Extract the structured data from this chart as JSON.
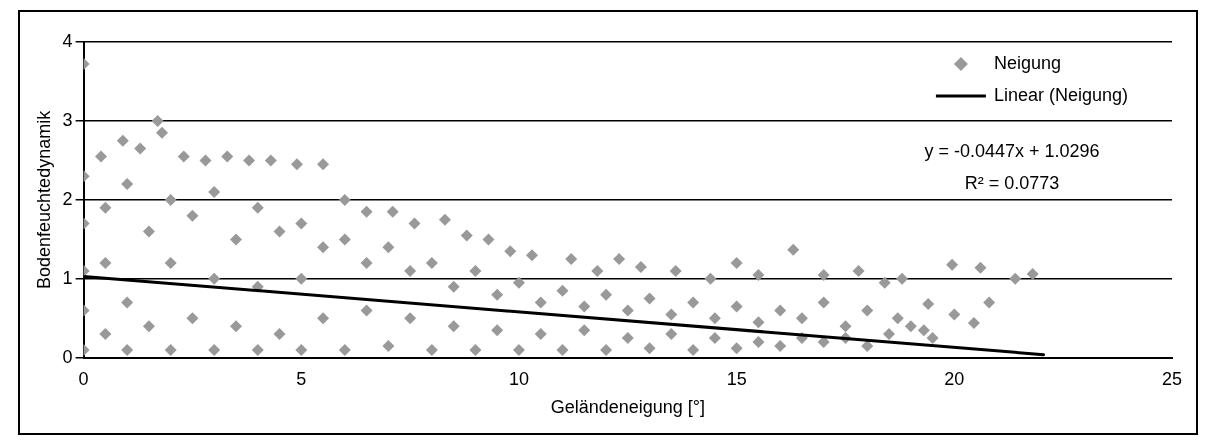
{
  "chart_data": {
    "type": "scatter",
    "xlabel": "Geländeneigung [°]",
    "ylabel": "Bodenfeuchtedynamik",
    "xlim": [
      0,
      25
    ],
    "xticks": [
      0,
      5,
      10,
      15,
      20,
      25
    ],
    "ylim": [
      0,
      4
    ],
    "yticks": [
      0,
      1,
      2,
      3,
      4
    ],
    "grid": "y",
    "legend": "top right",
    "annotations": [
      "y = -0.0447x + 1.0296",
      "R² = 0.0773"
    ],
    "series": [
      {
        "name": "Neigung",
        "type": "scatter",
        "color": "#999999",
        "marker": "diamond",
        "x": [
          0,
          0,
          0.4,
          0.9,
          1.3,
          1.7,
          1.8,
          2.3,
          2.8,
          3.3,
          3.8,
          4.3,
          4.9,
          5.5,
          6,
          6.5,
          7.1,
          7.6,
          8.3,
          8.8,
          9.3,
          9.8,
          10.3,
          11.2,
          11.8,
          12.3,
          12.8,
          13.6,
          14.4,
          15,
          15.5,
          16.3,
          17,
          17.8,
          18.4,
          18.8,
          19.4,
          19.95,
          20.45,
          20.6,
          21.4,
          21.8,
          0,
          0.5,
          1,
          1.5,
          2,
          2.5,
          3,
          3.5,
          4,
          4.5,
          5,
          5.5,
          6,
          6.5,
          7,
          7.5,
          8,
          8.5,
          9,
          9.5,
          10,
          10.5,
          11,
          11.5,
          12,
          12.5,
          13,
          13.5,
          14,
          14.5,
          15,
          15.5,
          16,
          16.5,
          17,
          17.5,
          18,
          18.5,
          19,
          19.5,
          20,
          20.8,
          0,
          0,
          0,
          0.5,
          0.5,
          1,
          1,
          1.5,
          2,
          2,
          2.5,
          3,
          3,
          3.5,
          4,
          4,
          4.5,
          5,
          5,
          5.5,
          6,
          6.5,
          7,
          7.5,
          8,
          8.5,
          9,
          9.5,
          10,
          10.5,
          11,
          11.5,
          12,
          12.5,
          13,
          13.5,
          14,
          14.5,
          15,
          15.5,
          16,
          16.5,
          17,
          17.5,
          18,
          18.7,
          19.3
        ],
        "values": [
          3.72,
          2.3,
          2.55,
          2.75,
          2.65,
          3.0,
          2.85,
          2.55,
          2.5,
          2.55,
          2.5,
          2.5,
          2.45,
          2.45,
          2.0,
          1.85,
          1.85,
          1.7,
          1.75,
          1.55,
          1.5,
          1.35,
          1.3,
          1.25,
          1.1,
          1.25,
          1.15,
          1.1,
          1.0,
          1.2,
          1.05,
          1.37,
          1.05,
          1.1,
          0.95,
          1.0,
          0.68,
          1.18,
          0.44,
          1.14,
          1.0,
          1.06,
          1.7,
          1.9,
          2.2,
          1.6,
          2.0,
          1.8,
          2.1,
          1.5,
          1.9,
          1.6,
          1.7,
          1.4,
          1.5,
          1.2,
          1.4,
          1.1,
          1.2,
          0.9,
          1.1,
          0.8,
          0.95,
          0.7,
          0.85,
          0.65,
          0.8,
          0.6,
          0.75,
          0.55,
          0.7,
          0.5,
          0.65,
          0.45,
          0.6,
          0.5,
          0.7,
          0.4,
          0.6,
          0.3,
          0.4,
          0.25,
          0.55,
          0.7,
          0.1,
          0.6,
          1.1,
          0.3,
          1.2,
          0.1,
          0.7,
          0.4,
          0.1,
          1.2,
          0.5,
          0.1,
          1.0,
          0.4,
          0.1,
          0.9,
          0.3,
          0.1,
          1.0,
          0.5,
          0.1,
          0.6,
          0.15,
          0.5,
          0.1,
          0.4,
          0.1,
          0.35,
          0.1,
          0.3,
          0.1,
          0.35,
          0.1,
          0.25,
          0.12,
          0.3,
          0.1,
          0.25,
          0.12,
          0.2,
          0.15,
          0.25,
          0.2,
          0.25,
          0.15,
          0.5,
          0.35
        ]
      },
      {
        "name": "Linear (Neigung)",
        "type": "line",
        "color": "#000000",
        "marker": "none",
        "x": [
          0,
          22.05
        ],
        "values": [
          1.03,
          0.04
        ]
      }
    ]
  }
}
